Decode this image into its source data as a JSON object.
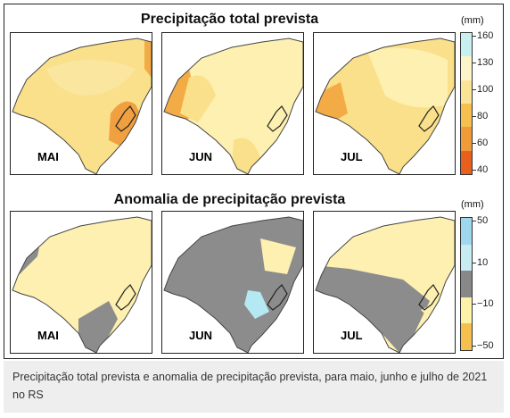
{
  "figure": {
    "top_title": "Precipitação total prevista",
    "bottom_title": "Anomalia de precipitação prevista",
    "months": [
      "MAI",
      "JUN",
      "JUL"
    ]
  },
  "legend_top": {
    "unit": "(mm)",
    "ticks": [
      "160",
      "130",
      "100",
      "80",
      "60",
      "40"
    ],
    "colors": [
      "#c8f0f0",
      "#fdf5c9",
      "#fbe495",
      "#f5c04e",
      "#f09a38",
      "#e8601c"
    ]
  },
  "legend_bottom": {
    "unit": "(mm)",
    "ticks": [
      "50",
      "10",
      "−10",
      "−50"
    ],
    "colors": [
      "#9fd8ee",
      "#c7ecf2",
      "#888888",
      "#fdf3a8",
      "#f5c04e"
    ]
  },
  "colors": {
    "yellow": "#fae08a",
    "pale_yellow": "#fdf0b0",
    "orange": "#f3ac45",
    "gray": "#8c8c8c",
    "cyan": "#b4e8f2"
  },
  "caption": "Precipitação total prevista e anomalia de precipitação prevista, para maio, junho e julho de 2021 no RS"
}
